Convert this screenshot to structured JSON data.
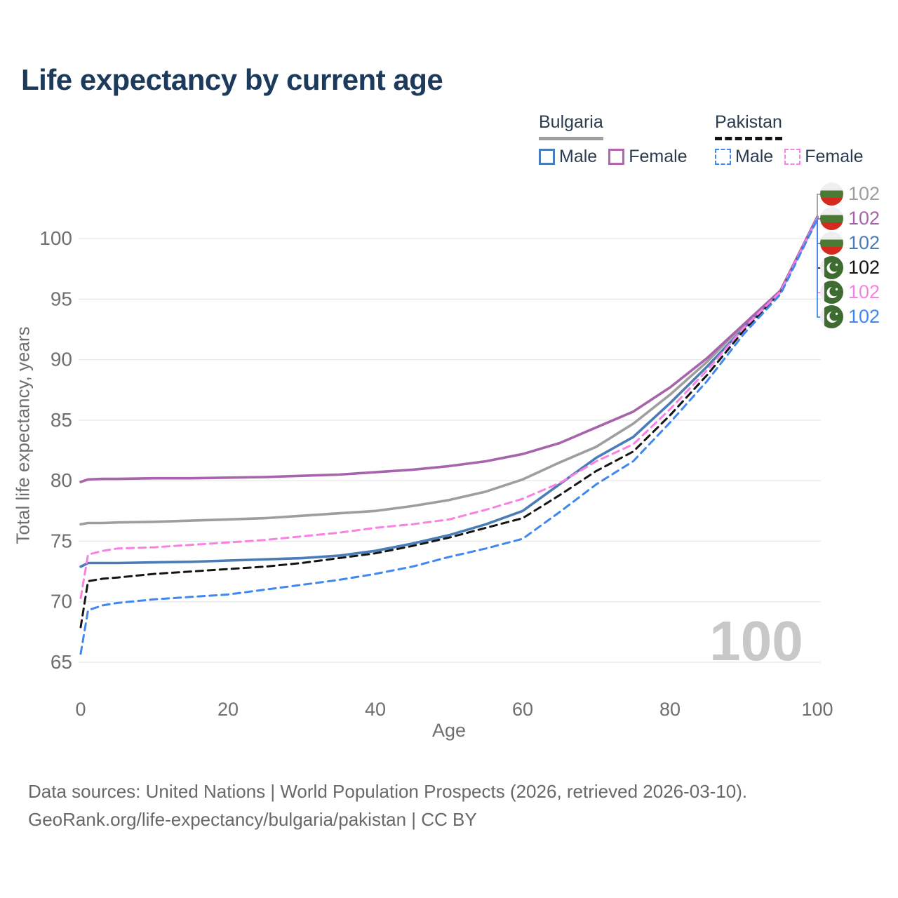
{
  "title": "Life expectancy by current age",
  "legend": {
    "groups": [
      {
        "label": "Bulgaria",
        "underline": "solid",
        "underline_color": "#9e9e9e",
        "items": [
          {
            "label": "Male",
            "color": "#4a7db8",
            "dashed": false
          },
          {
            "label": "Female",
            "color": "#b265ae",
            "dashed": false
          }
        ]
      },
      {
        "label": "Pakistan",
        "underline": "dashed",
        "underline_color": "#141414",
        "items": [
          {
            "label": "Male",
            "color": "#4187f2",
            "dashed": true
          },
          {
            "label": "Female",
            "color": "#fb80e3",
            "dashed": true
          }
        ]
      }
    ]
  },
  "watermark": "100",
  "footer": {
    "line1": "Data sources: United Nations | World Population Prospects (2026, retrieved 2026-03-10).",
    "line2": "GeoRank.org/life-expectancy/bulgaria/pakistan | CC BY"
  },
  "chart_data": {
    "type": "line",
    "title": "Life expectancy by current age",
    "xlabel": "Age",
    "ylabel": "Total life expectancy, years",
    "xlim": [
      0,
      100
    ],
    "ylim": [
      65,
      102
    ],
    "xticks": [
      0,
      20,
      40,
      60,
      80,
      100
    ],
    "yticks": [
      65,
      70,
      75,
      80,
      85,
      90,
      95,
      100
    ],
    "grid": "horizontal-only",
    "legend_position": "top-right",
    "x_ages": [
      0,
      1,
      3,
      5,
      10,
      15,
      20,
      25,
      30,
      35,
      40,
      45,
      50,
      55,
      60,
      65,
      70,
      75,
      80,
      85,
      90,
      95,
      100
    ],
    "series": [
      {
        "name": "Bulgaria All",
        "country": "bulgaria",
        "style": "solid",
        "color": "#9e9e9e",
        "end_label": "102",
        "values": [
          76.4,
          76.5,
          76.5,
          76.55,
          76.6,
          76.7,
          76.8,
          76.9,
          77.1,
          77.3,
          77.5,
          77.9,
          78.4,
          79.1,
          80.1,
          81.5,
          82.8,
          84.7,
          87.1,
          89.8,
          92.9,
          95.7,
          101.7
        ]
      },
      {
        "name": "Bulgaria Female",
        "country": "bulgaria",
        "style": "solid",
        "color": "#a763ab",
        "end_label": "102",
        "values": [
          79.9,
          80.1,
          80.15,
          80.15,
          80.2,
          80.2,
          80.25,
          80.3,
          80.4,
          80.5,
          80.7,
          80.9,
          81.2,
          81.6,
          82.2,
          83.1,
          84.4,
          85.7,
          87.7,
          90.1,
          92.9,
          95.7,
          101.8
        ]
      },
      {
        "name": "Bulgaria Male",
        "country": "bulgaria",
        "style": "solid",
        "color": "#4a7db8",
        "end_label": "102",
        "values": [
          72.9,
          73.2,
          73.2,
          73.2,
          73.25,
          73.3,
          73.4,
          73.5,
          73.6,
          73.8,
          74.2,
          74.8,
          75.5,
          76.4,
          77.5,
          79.7,
          81.9,
          83.6,
          86.4,
          89.4,
          92.6,
          95.6,
          101.7
        ]
      },
      {
        "name": "Pakistan All",
        "country": "pakistan",
        "style": "dashed",
        "color": "#141414",
        "end_label": "102",
        "values": [
          67.9,
          71.7,
          71.9,
          72.0,
          72.3,
          72.5,
          72.7,
          72.9,
          73.2,
          73.6,
          74.0,
          74.6,
          75.3,
          76.1,
          76.9,
          78.8,
          80.8,
          82.4,
          85.4,
          88.7,
          92.4,
          95.5,
          101.6
        ]
      },
      {
        "name": "Pakistan Female",
        "country": "pakistan",
        "style": "dashed",
        "color": "#fb80e3",
        "end_label": "102",
        "values": [
          70.3,
          73.9,
          74.2,
          74.4,
          74.5,
          74.7,
          74.9,
          75.1,
          75.4,
          75.7,
          76.1,
          76.4,
          76.8,
          77.6,
          78.5,
          79.8,
          81.6,
          83.0,
          85.9,
          89.1,
          92.6,
          95.6,
          101.7
        ]
      },
      {
        "name": "Pakistan Male",
        "country": "pakistan",
        "style": "dashed",
        "color": "#4187f2",
        "end_label": "102",
        "values": [
          65.7,
          69.3,
          69.7,
          69.9,
          70.2,
          70.4,
          70.6,
          71.0,
          71.4,
          71.8,
          72.3,
          72.9,
          73.7,
          74.4,
          75.2,
          77.4,
          79.7,
          81.6,
          84.8,
          88.2,
          92.1,
          95.4,
          101.6
        ]
      }
    ]
  }
}
